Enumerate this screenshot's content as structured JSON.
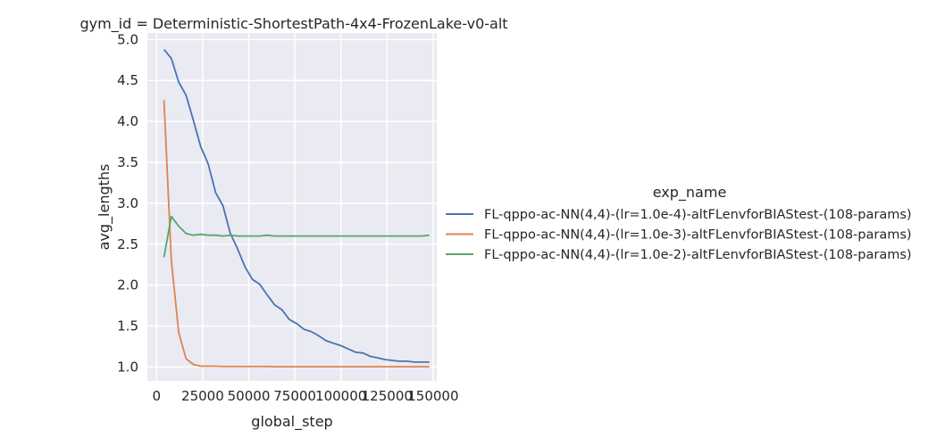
{
  "chart_data": {
    "type": "line",
    "title": "gym_id = Deterministic-ShortestPath-4x4-FrozenLake-v0-alt",
    "xlabel": "global_step",
    "ylabel": "avg_lengths",
    "xlim": [
      -5000,
      152000
    ],
    "ylim": [
      0.83,
      5.08
    ],
    "xticks": [
      0,
      25000,
      50000,
      75000,
      100000,
      125000,
      150000
    ],
    "xtick_labels": [
      "0",
      "25000",
      "50000",
      "75000",
      "100000",
      "125000",
      "150000"
    ],
    "yticks": [
      1.0,
      1.5,
      2.0,
      2.5,
      3.0,
      3.5,
      4.0,
      4.5,
      5.0
    ],
    "ytick_labels": [
      "1.0",
      "1.5",
      "2.0",
      "2.5",
      "3.0",
      "3.5",
      "4.0",
      "4.5",
      "5.0"
    ],
    "grid": true,
    "legend": {
      "title": "exp_name",
      "placement": "right"
    },
    "x": [
      4000,
      8000,
      12000,
      16000,
      20000,
      24000,
      28000,
      32000,
      36000,
      40000,
      44000,
      48000,
      52000,
      56000,
      60000,
      64000,
      68000,
      72000,
      76000,
      80000,
      84000,
      88000,
      92000,
      96000,
      100000,
      104000,
      108000,
      112000,
      116000,
      120000,
      124000,
      128000,
      132000,
      136000,
      140000,
      144000,
      148000
    ],
    "series": [
      {
        "name": "FL-qppo-ac-NN(4,4)-(lr=1.0e-4)-altFLenvforBIAStest-(108-params)",
        "color": "#4c72b0",
        "values": [
          4.88,
          4.77,
          4.48,
          4.32,
          4.01,
          3.69,
          3.48,
          3.13,
          2.97,
          2.63,
          2.44,
          2.22,
          2.07,
          2.01,
          1.88,
          1.76,
          1.7,
          1.58,
          1.53,
          1.46,
          1.43,
          1.38,
          1.32,
          1.29,
          1.26,
          1.22,
          1.18,
          1.17,
          1.13,
          1.11,
          1.09,
          1.08,
          1.07,
          1.07,
          1.06,
          1.06,
          1.06
        ]
      },
      {
        "name": "FL-qppo-ac-NN(4,4)-(lr=1.0e-3)-altFLenvforBIAStest-(108-params)",
        "color": "#dd8452",
        "values": [
          4.26,
          2.3,
          1.42,
          1.1,
          1.03,
          1.01,
          1.01,
          1.01,
          1.005,
          1.005,
          1.005,
          1.005,
          1.005,
          1.005,
          1.005,
          1.003,
          1.003,
          1.003,
          1.003,
          1.003,
          1.003,
          1.003,
          1.003,
          1.003,
          1.003,
          1.003,
          1.003,
          1.003,
          1.003,
          1.003,
          1.003,
          1.003,
          1.003,
          1.003,
          1.003,
          1.003,
          1.003
        ]
      },
      {
        "name": "FL-qppo-ac-NN(4,4)-(lr=1.0e-2)-altFLenvforBIAStest-(108-params)",
        "color": "#55a868",
        "values": [
          2.34,
          2.84,
          2.72,
          2.63,
          2.61,
          2.62,
          2.61,
          2.61,
          2.6,
          2.61,
          2.6,
          2.6,
          2.6,
          2.6,
          2.61,
          2.6,
          2.6,
          2.6,
          2.6,
          2.6,
          2.6,
          2.6,
          2.6,
          2.6,
          2.6,
          2.6,
          2.6,
          2.6,
          2.6,
          2.6,
          2.6,
          2.6,
          2.6,
          2.6,
          2.6,
          2.6,
          2.61
        ]
      }
    ]
  }
}
